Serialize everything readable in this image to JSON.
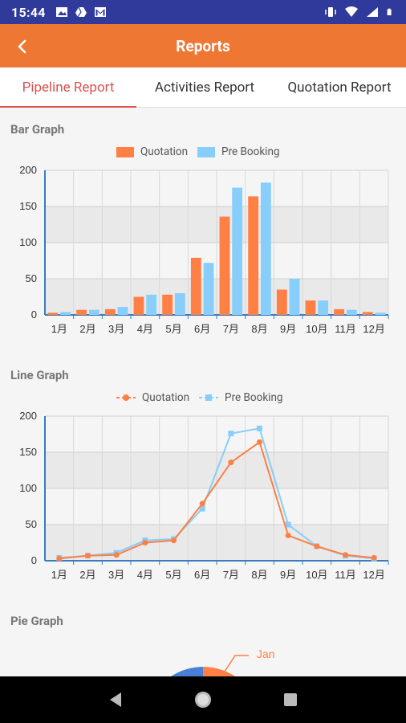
{
  "status_bar": {
    "time": "15:44"
  },
  "app_bar": {
    "title": "Reports"
  },
  "tabs": [
    {
      "label": "Pipeline Report"
    },
    {
      "label": "Activities Report"
    },
    {
      "label": "Quotation Report"
    }
  ],
  "colors": {
    "quotation": "#ff7f45",
    "pre_booking": "#87cefa",
    "app_bar": "#ee7733",
    "status_bar": "#2f3a9a",
    "accent": "#d9534f"
  },
  "sections": {
    "bar": {
      "title": "Bar Graph"
    },
    "line": {
      "title": "Line Graph"
    },
    "pie": {
      "title": "Pie Graph",
      "label": "Jan"
    }
  },
  "chart_data": [
    {
      "type": "bar",
      "title": "Bar Graph",
      "categories": [
        "1月",
        "2月",
        "3月",
        "4月",
        "5月",
        "6月",
        "7月",
        "8月",
        "9月",
        "10月",
        "11月",
        "12月"
      ],
      "series": [
        {
          "name": "Quotation",
          "values": [
            3,
            7,
            8,
            25,
            28,
            79,
            136,
            164,
            35,
            20,
            8,
            4
          ]
        },
        {
          "name": "Pre Booking",
          "values": [
            4,
            7,
            11,
            28,
            30,
            72,
            176,
            183,
            50,
            20,
            7,
            3
          ]
        }
      ],
      "ylim": [
        0,
        200
      ],
      "yticks": [
        0,
        50,
        100,
        150,
        200
      ],
      "legend": "top-center"
    },
    {
      "type": "line",
      "title": "Line Graph",
      "categories": [
        "1月",
        "2月",
        "3月",
        "4月",
        "5月",
        "6月",
        "7月",
        "8月",
        "9月",
        "10月",
        "11月",
        "12月"
      ],
      "series": [
        {
          "name": "Quotation",
          "values": [
            3,
            7,
            8,
            25,
            28,
            79,
            136,
            164,
            35,
            20,
            8,
            4
          ]
        },
        {
          "name": "Pre Booking",
          "values": [
            4,
            7,
            11,
            28,
            30,
            72,
            176,
            183,
            50,
            20,
            7,
            3
          ]
        }
      ],
      "ylim": [
        0,
        200
      ],
      "yticks": [
        0,
        50,
        100,
        150,
        200
      ],
      "legend": "top-center"
    }
  ]
}
